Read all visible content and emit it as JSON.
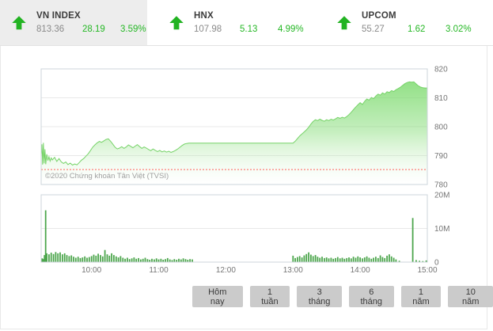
{
  "header": {
    "indices": [
      {
        "name": "VN INDEX",
        "value": "813.36",
        "change": "28.19",
        "change_pct": "3.59%",
        "direction": "up",
        "selected": true
      },
      {
        "name": "HNX",
        "value": "107.98",
        "change": "5.13",
        "change_pct": "4.99%",
        "direction": "up",
        "selected": false
      },
      {
        "name": "UPCOM",
        "value": "55.27",
        "change": "1.62",
        "change_pct": "3.02%",
        "direction": "up",
        "selected": false
      }
    ]
  },
  "copyright": "©2020 Chứng khoán Tân Việt (TVSI)",
  "range_buttons": [
    "Hôm nay",
    "1 tuần",
    "3 tháng",
    "6 tháng",
    "1 năm",
    "10 năm"
  ],
  "colors": {
    "up_green": "#26b826",
    "arrow_green": "#22b322",
    "area_line": "#76d368",
    "area_fill_top": "#78d969",
    "volume_bar": "#4ca64c",
    "prev_close_line": "#ff6059",
    "grid": "#e8e8e8",
    "plot_border": "#ccd6db",
    "axis_text": "#757575",
    "tab_bg": "#ededed",
    "button_bg": "#cbcbcb"
  },
  "chart_data": [
    {
      "type": "area",
      "title": "VN-Index intraday",
      "x_unit": "minutes since 09:15",
      "ylim": [
        780,
        820
      ],
      "xlim": [
        0,
        345
      ],
      "y_ticks": [
        820,
        810,
        800,
        790,
        780
      ],
      "x_ticks": [
        {
          "t": 45,
          "label": "10:00"
        },
        {
          "t": 105,
          "label": "11:00"
        },
        {
          "t": 165,
          "label": "12:00"
        },
        {
          "t": 225,
          "label": "13:00"
        },
        {
          "t": 285,
          "label": "14:00"
        },
        {
          "t": 345,
          "label": "15:00"
        }
      ],
      "prev_close": 785.17,
      "grid": true,
      "legend": "none",
      "series": [
        {
          "name": "VN-Index",
          "points": [
            [
              0,
              790.2
            ],
            [
              0.7,
              793.9
            ],
            [
              1.3,
              786.9
            ],
            [
              2,
              794.4
            ],
            [
              2.7,
              787.3
            ],
            [
              3.4,
              792.2
            ],
            [
              4.1,
              787.0
            ],
            [
              5,
              790.5
            ],
            [
              6,
              788.3
            ],
            [
              7,
              789.6
            ],
            [
              8,
              788.1
            ],
            [
              9,
              789.2
            ],
            [
              10,
              788.5
            ],
            [
              12,
              789.4
            ],
            [
              14,
              788.0
            ],
            [
              16,
              789.0
            ],
            [
              18,
              787.8
            ],
            [
              20,
              787.3
            ],
            [
              22,
              787.8
            ],
            [
              24,
              786.9
            ],
            [
              26,
              787.4
            ],
            [
              28,
              786.7
            ],
            [
              30,
              787.1
            ],
            [
              32,
              786.8
            ],
            [
              34,
              787.6
            ],
            [
              36,
              788.4
            ],
            [
              38,
              789.0
            ],
            [
              40,
              789.8
            ],
            [
              42,
              790.6
            ],
            [
              44,
              791.7
            ],
            [
              46,
              792.9
            ],
            [
              48,
              793.7
            ],
            [
              50,
              794.4
            ],
            [
              52,
              794.9
            ],
            [
              54,
              794.6
            ],
            [
              56,
              795.1
            ],
            [
              58,
              795.6
            ],
            [
              60,
              795.8
            ],
            [
              62,
              795.0
            ],
            [
              64,
              794.0
            ],
            [
              66,
              792.9
            ],
            [
              68,
              792.3
            ],
            [
              70,
              792.6
            ],
            [
              72,
              793.1
            ],
            [
              74,
              792.5
            ],
            [
              76,
              793.0
            ],
            [
              78,
              793.7
            ],
            [
              80,
              793.2
            ],
            [
              82,
              792.7
            ],
            [
              84,
              793.3
            ],
            [
              86,
              793.8
            ],
            [
              88,
              793.1
            ],
            [
              90,
              792.5
            ],
            [
              92,
              793.0
            ],
            [
              94,
              792.6
            ],
            [
              96,
              792.1
            ],
            [
              98,
              791.7
            ],
            [
              100,
              792.3
            ],
            [
              102,
              791.8
            ],
            [
              104,
              791.4
            ],
            [
              106,
              791.8
            ],
            [
              108,
              791.3
            ],
            [
              110,
              791.6
            ],
            [
              112,
              791.2
            ],
            [
              114,
              791.5
            ],
            [
              116,
              791.1
            ],
            [
              118,
              791.4
            ],
            [
              120,
              791.8
            ],
            [
              122,
              792.3
            ],
            [
              124,
              792.9
            ],
            [
              126,
              793.5
            ],
            [
              128,
              794.0
            ],
            [
              130,
              794.2
            ],
            [
              132,
              794.3
            ],
            [
              135,
              794.3
            ],
            [
              225,
              794.3
            ],
            [
              227,
              795.0
            ],
            [
              229,
              795.9
            ],
            [
              231,
              796.8
            ],
            [
              233,
              797.5
            ],
            [
              235,
              798.2
            ],
            [
              237,
              798.9
            ],
            [
              239,
              799.8
            ],
            [
              241,
              800.9
            ],
            [
              243,
              801.8
            ],
            [
              245,
              802.4
            ],
            [
              247,
              802.1
            ],
            [
              249,
              802.6
            ],
            [
              251,
              802.2
            ],
            [
              253,
              801.9
            ],
            [
              255,
              802.4
            ],
            [
              257,
              802.1
            ],
            [
              259,
              802.6
            ],
            [
              261,
              802.3
            ],
            [
              263,
              802.7
            ],
            [
              265,
              803.2
            ],
            [
              267,
              802.9
            ],
            [
              269,
              803.3
            ],
            [
              271,
              803.0
            ],
            [
              273,
              803.5
            ],
            [
              275,
              804.2
            ],
            [
              277,
              805.0
            ],
            [
              279,
              805.9
            ],
            [
              281,
              806.8
            ],
            [
              283,
              807.6
            ],
            [
              285,
              808.3
            ],
            [
              287,
              807.7
            ],
            [
              289,
              808.8
            ],
            [
              291,
              809.6
            ],
            [
              293,
              809.2
            ],
            [
              295,
              810.1
            ],
            [
              297,
              809.7
            ],
            [
              299,
              810.6
            ],
            [
              301,
              811.3
            ],
            [
              303,
              810.9
            ],
            [
              305,
              811.7
            ],
            [
              307,
              811.3
            ],
            [
              309,
              812.1
            ],
            [
              311,
              811.8
            ],
            [
              313,
              812.5
            ],
            [
              315,
              812.2
            ],
            [
              317,
              812.8
            ],
            [
              319,
              813.2
            ],
            [
              321,
              813.7
            ],
            [
              323,
              814.3
            ],
            [
              325,
              814.9
            ],
            [
              327,
              815.3
            ],
            [
              329,
              815.5
            ],
            [
              331,
              815.4
            ],
            [
              333,
              815.5
            ],
            [
              335,
              814.8
            ],
            [
              337,
              814.1
            ],
            [
              339,
              813.7
            ],
            [
              341,
              813.5
            ],
            [
              343,
              813.4
            ],
            [
              345,
              813.4
            ]
          ]
        }
      ]
    },
    {
      "type": "bar",
      "title": "Volume",
      "x_unit": "minutes since 09:15",
      "y_unit": "shares (millions)",
      "ylim": [
        0,
        20
      ],
      "xlim": [
        0,
        345
      ],
      "y_ticks": [
        {
          "v": 20,
          "label": "20M"
        },
        {
          "v": 10,
          "label": "10M"
        },
        {
          "v": 0,
          "label": "0"
        }
      ],
      "bars": [
        [
          1,
          1.1
        ],
        [
          2,
          0.9
        ],
        [
          3,
          2.1
        ],
        [
          4,
          15.4
        ],
        [
          5,
          2.6
        ],
        [
          7,
          2.3
        ],
        [
          9,
          2.8
        ],
        [
          11,
          2.4
        ],
        [
          13,
          3.0
        ],
        [
          15,
          2.6
        ],
        [
          17,
          2.9
        ],
        [
          19,
          2.3
        ],
        [
          21,
          2.6
        ],
        [
          23,
          2.1
        ],
        [
          25,
          1.8
        ],
        [
          27,
          2.0
        ],
        [
          29,
          1.6
        ],
        [
          31,
          1.3
        ],
        [
          33,
          1.6
        ],
        [
          35,
          1.2
        ],
        [
          37,
          1.4
        ],
        [
          39,
          1.7
        ],
        [
          41,
          1.3
        ],
        [
          43,
          1.5
        ],
        [
          45,
          1.8
        ],
        [
          47,
          2.2
        ],
        [
          49,
          1.9
        ],
        [
          51,
          2.5
        ],
        [
          53,
          2.1
        ],
        [
          55,
          1.7
        ],
        [
          57,
          3.6
        ],
        [
          59,
          2.3
        ],
        [
          61,
          1.9
        ],
        [
          63,
          2.6
        ],
        [
          65,
          2.1
        ],
        [
          67,
          1.7
        ],
        [
          69,
          1.4
        ],
        [
          71,
          1.8
        ],
        [
          73,
          1.3
        ],
        [
          75,
          1.0
        ],
        [
          77,
          1.3
        ],
        [
          79,
          0.9
        ],
        [
          81,
          1.1
        ],
        [
          83,
          1.4
        ],
        [
          85,
          1.0
        ],
        [
          87,
          1.2
        ],
        [
          89,
          0.8
        ],
        [
          91,
          1.0
        ],
        [
          93,
          1.3
        ],
        [
          95,
          0.9
        ],
        [
          97,
          0.7
        ],
        [
          99,
          1.0
        ],
        [
          101,
          0.8
        ],
        [
          103,
          1.1
        ],
        [
          105,
          0.8
        ],
        [
          107,
          1.0
        ],
        [
          109,
          0.7
        ],
        [
          111,
          0.9
        ],
        [
          113,
          1.2
        ],
        [
          115,
          0.8
        ],
        [
          117,
          0.6
        ],
        [
          119,
          0.9
        ],
        [
          121,
          0.7
        ],
        [
          123,
          1.0
        ],
        [
          125,
          0.8
        ],
        [
          127,
          1.1
        ],
        [
          129,
          0.9
        ],
        [
          131,
          0.7
        ],
        [
          133,
          0.9
        ],
        [
          135,
          0.8
        ],
        [
          225,
          1.9
        ],
        [
          227,
          1.2
        ],
        [
          229,
          1.5
        ],
        [
          231,
          1.8
        ],
        [
          233,
          1.4
        ],
        [
          235,
          2.0
        ],
        [
          237,
          2.4
        ],
        [
          239,
          2.9
        ],
        [
          241,
          2.2
        ],
        [
          243,
          1.8
        ],
        [
          245,
          2.1
        ],
        [
          247,
          1.6
        ],
        [
          249,
          1.3
        ],
        [
          251,
          1.6
        ],
        [
          253,
          1.2
        ],
        [
          255,
          1.4
        ],
        [
          257,
          1.1
        ],
        [
          259,
          1.3
        ],
        [
          261,
          1.0
        ],
        [
          263,
          1.2
        ],
        [
          265,
          1.5
        ],
        [
          267,
          1.1
        ],
        [
          269,
          1.3
        ],
        [
          271,
          1.0
        ],
        [
          273,
          1.2
        ],
        [
          275,
          1.4
        ],
        [
          277,
          1.1
        ],
        [
          279,
          1.6
        ],
        [
          281,
          1.3
        ],
        [
          283,
          1.7
        ],
        [
          285,
          1.4
        ],
        [
          287,
          1.1
        ],
        [
          289,
          1.4
        ],
        [
          291,
          1.7
        ],
        [
          293,
          1.3
        ],
        [
          295,
          1.0
        ],
        [
          297,
          1.3
        ],
        [
          299,
          1.6
        ],
        [
          301,
          1.2
        ],
        [
          303,
          2.0
        ],
        [
          305,
          1.5
        ],
        [
          307,
          1.2
        ],
        [
          309,
          1.9
        ],
        [
          311,
          2.3
        ],
        [
          313,
          1.7
        ],
        [
          315,
          1.3
        ],
        [
          317,
          0.8
        ],
        [
          320,
          0.4
        ],
        [
          332,
          13.1
        ],
        [
          335,
          0.6
        ],
        [
          338,
          0.4
        ],
        [
          341,
          0.3
        ],
        [
          344,
          0.5
        ]
      ]
    }
  ]
}
